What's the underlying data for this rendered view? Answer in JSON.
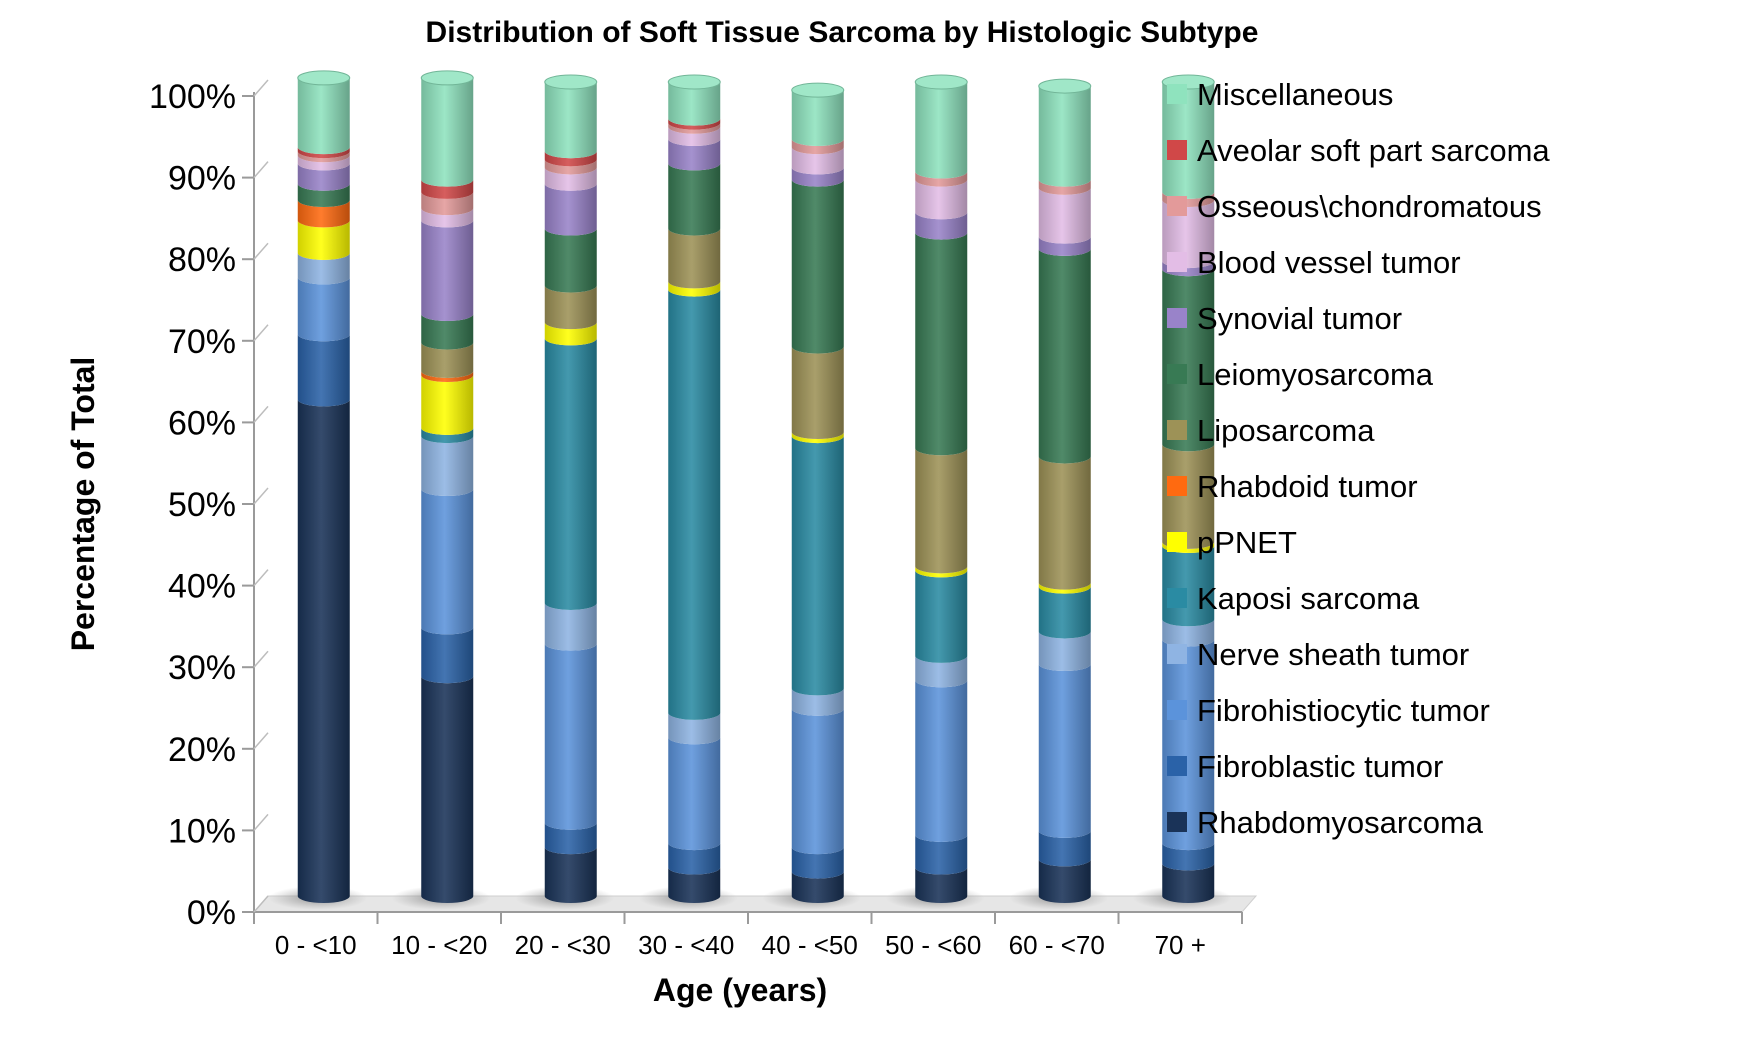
{
  "chart_data": {
    "type": "bar",
    "stacked": true,
    "title": "Distribution of Soft Tissue Sarcoma by Histologic Subtype",
    "xlabel": "Age (years)",
    "ylabel": "Percentage of Total",
    "ylim": [
      0,
      100
    ],
    "yticks": [
      "0%",
      "10%",
      "20%",
      "30%",
      "40%",
      "50%",
      "60%",
      "70%",
      "80%",
      "90%",
      "100%"
    ],
    "grid": false,
    "legend_position": "right",
    "categories": [
      "0 - <10",
      "10 - <20",
      "20 - <30",
      "30 - <40",
      "40 - <50",
      "50 - <60",
      "60 - <70",
      "70 +"
    ],
    "series": [
      {
        "name": "Rhabdomyosarcoma",
        "color": "#1a3358",
        "values": [
          61,
          27,
          6,
          3.5,
          3,
          3.5,
          4.5,
          4
        ]
      },
      {
        "name": "Fibroblastic tumor",
        "color": "#2a62a8",
        "values": [
          8,
          6,
          3,
          3,
          3,
          4,
          3.5,
          2.5
        ]
      },
      {
        "name": "Fibrohistiocytic tumor",
        "color": "#5b93db",
        "values": [
          7,
          17,
          22,
          13,
          17,
          19,
          20.5,
          25
        ]
      },
      {
        "name": "Nerve sheath tumor",
        "color": "#8fb4e3",
        "values": [
          3,
          6.5,
          5,
          3,
          2.5,
          3,
          4,
          2.5
        ]
      },
      {
        "name": "Kaposi sarcoma",
        "color": "#2a8ba3",
        "values": [
          0,
          1,
          32.5,
          52,
          31,
          10.5,
          5.5,
          9
        ]
      },
      {
        "name": "pPNET",
        "color": "#ffff00",
        "values": [
          4,
          6.5,
          2,
          1,
          0.5,
          0.5,
          0.5,
          0.5
        ]
      },
      {
        "name": "Rhabdoid tumor",
        "color": "#ff6a10",
        "values": [
          2.5,
          0.5,
          0,
          0,
          0,
          0,
          0,
          0
        ]
      },
      {
        "name": "Liposarcoma",
        "color": "#9d9257",
        "values": [
          0,
          3.5,
          4.5,
          6.5,
          10.5,
          14.5,
          15.5,
          12
        ]
      },
      {
        "name": "Leiomyosarcoma",
        "color": "#387a54",
        "values": [
          2,
          3.5,
          7,
          8,
          20.5,
          26.5,
          25.5,
          21.5
        ]
      },
      {
        "name": "Synovial tumor",
        "color": "#9983c9",
        "values": [
          2.5,
          11.5,
          5.5,
          3,
          1.5,
          2.5,
          1.5,
          1
        ]
      },
      {
        "name": "Blood vessel tumor",
        "color": "#e3bde6",
        "values": [
          1,
          1.5,
          2,
          1.5,
          2.5,
          4,
          6,
          7.5
        ]
      },
      {
        "name": "Osseous\\chondromatous",
        "color": "#e39a9a",
        "values": [
          0.5,
          2,
          1,
          0.5,
          1,
          1,
          1,
          1
        ]
      },
      {
        "name": "Aveolar soft part sarcoma",
        "color": "#d04848",
        "values": [
          0.5,
          1.5,
          1,
          0.5,
          0,
          0,
          0,
          0
        ]
      },
      {
        "name": "Miscellaneous",
        "color": "#8fe3be",
        "values": [
          8.5,
          12.5,
          8.5,
          4.5,
          6,
          11,
          11.5,
          13.5
        ]
      }
    ]
  }
}
